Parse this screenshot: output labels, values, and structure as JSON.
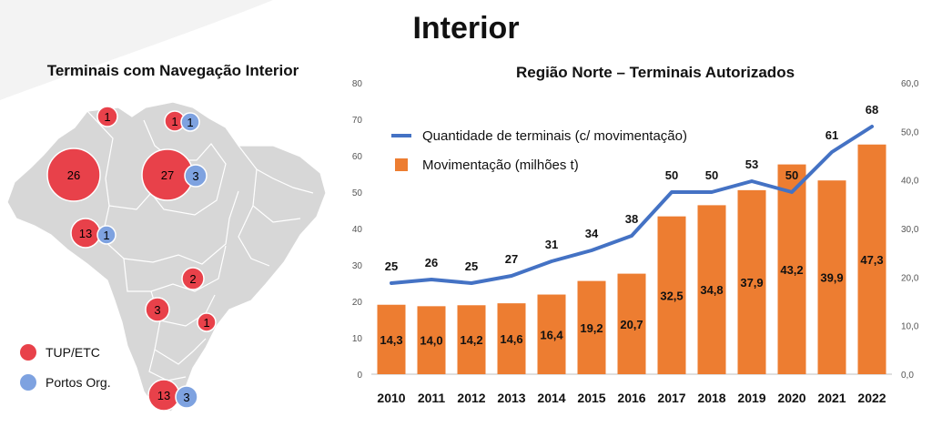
{
  "page_title": "Interior",
  "map": {
    "title": "Terminais com Navegação Interior",
    "legend": [
      {
        "label": "TUP/ETC",
        "color": "#e8414a"
      },
      {
        "label": "Portos Org.",
        "color": "#7ea2e0"
      }
    ],
    "markers": [
      {
        "tup": "1"
      },
      {
        "tup": "1",
        "org": "1"
      },
      {
        "tup": "26"
      },
      {
        "tup": "27",
        "org": "3"
      },
      {
        "tup": "13",
        "org": "1"
      },
      {
        "tup": "2"
      },
      {
        "tup": "3"
      },
      {
        "tup": "1"
      },
      {
        "tup": "13",
        "org": "3"
      }
    ]
  },
  "chart_data": {
    "type": "bar+line",
    "title": "Região Norte – Terminais Autorizados",
    "categories": [
      "2010",
      "2011",
      "2012",
      "2013",
      "2014",
      "2015",
      "2016",
      "2017",
      "2018",
      "2019",
      "2020",
      "2021",
      "2022"
    ],
    "series": [
      {
        "name": "Quantidade de terminais (c/ movimentação)",
        "type": "line",
        "axis": "left",
        "color": "#4472c4",
        "values": [
          25,
          26,
          25,
          27,
          31,
          34,
          38,
          50,
          50,
          53,
          50,
          61,
          68
        ],
        "labels": [
          "25",
          "26",
          "25",
          "27",
          "31",
          "34",
          "38",
          "50",
          "50",
          "53",
          "50",
          "61",
          "68"
        ]
      },
      {
        "name": "Movimentação (milhões t)",
        "type": "bar",
        "axis": "right",
        "color": "#ed7d31",
        "values": [
          14.3,
          14.0,
          14.2,
          14.6,
          16.4,
          19.2,
          20.7,
          32.5,
          34.8,
          37.9,
          43.2,
          39.9,
          47.3
        ],
        "labels": [
          "14,3",
          "14,0",
          "14,2",
          "14,6",
          "16,4",
          "19,2",
          "20,7",
          "32,5",
          "34,8",
          "37,9",
          "43,2",
          "39,9",
          "47,3"
        ]
      }
    ],
    "y_left": {
      "min": 0,
      "max": 80,
      "ticks": [
        "0",
        "10",
        "20",
        "30",
        "40",
        "50",
        "60",
        "70",
        "80"
      ]
    },
    "y_right": {
      "min": 0,
      "max": 60,
      "ticks": [
        "0,0",
        "10,0",
        "20,0",
        "30,0",
        "40,0",
        "50,0",
        "60,0"
      ]
    },
    "grid": false,
    "legend": "top-left"
  }
}
